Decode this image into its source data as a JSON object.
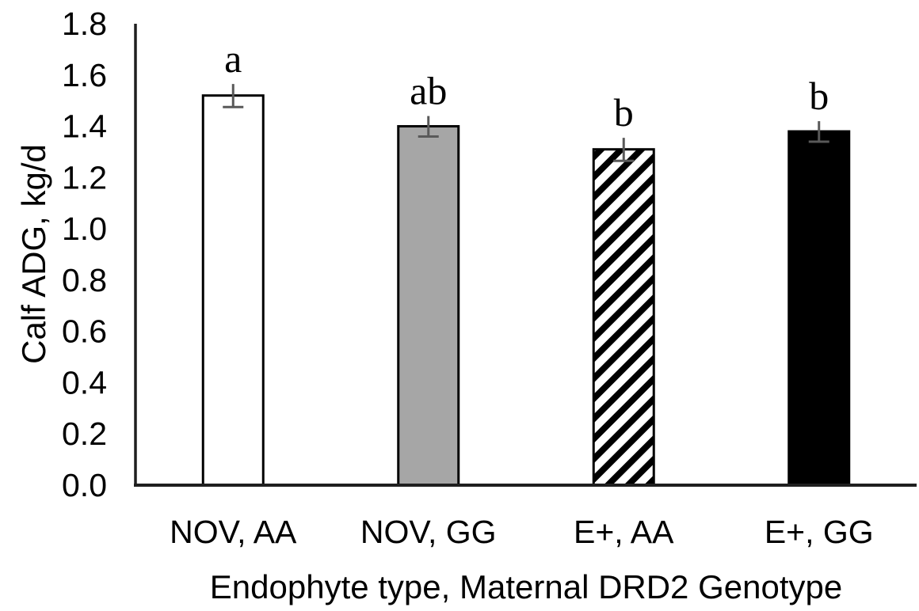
{
  "chart_data": {
    "type": "bar",
    "xlabel": "Endophyte type, Maternal DRD2 Genotype",
    "ylabel": "Calf ADG, kg/d",
    "categories": [
      "NOV, AA",
      "NOV, GG",
      "E+, AA",
      "E+, GG"
    ],
    "values": [
      1.52,
      1.4,
      1.31,
      1.38
    ],
    "error_bars": [
      0.045,
      0.04,
      0.045,
      0.04
    ],
    "sig_letters": [
      "a",
      "ab",
      "b",
      "b"
    ],
    "bar_styles": [
      "white-outline",
      "solid-gray",
      "diagonal-hatch",
      "solid-black"
    ],
    "ylim": [
      0.0,
      1.8
    ],
    "yticks": [
      "0.0",
      "0.2",
      "0.4",
      "0.6",
      "0.8",
      "1.0",
      "1.2",
      "1.4",
      "1.6",
      "1.8"
    ],
    "grid": false,
    "legend": "none",
    "colors": {
      "white_bar": "#ffffff",
      "gray_bar": "#a6a6a6",
      "black_bar": "#000000",
      "bar_outline": "#000000",
      "error_bar": "#595959",
      "axis": "#1f1f1f",
      "text": "#000000"
    }
  }
}
